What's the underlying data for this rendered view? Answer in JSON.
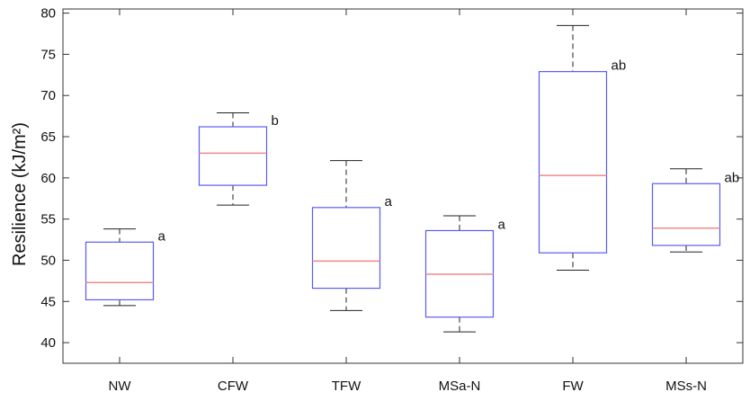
{
  "chart_data": {
    "type": "boxplot",
    "title": "",
    "xlabel": "",
    "ylabel": "Resilience (kJ/m²)",
    "ylim": [
      37.5,
      80.5
    ],
    "yticks": [
      40,
      45,
      50,
      55,
      60,
      65,
      70,
      75,
      80
    ],
    "categories": [
      "NW",
      "CFW",
      "TFW",
      "MSa-N",
      "FW",
      "MSs-N"
    ],
    "boxes": [
      {
        "category": "NW",
        "min": 44.5,
        "q1": 45.2,
        "median": 47.3,
        "q3": 52.2,
        "max": 53.8,
        "group": "a"
      },
      {
        "category": "CFW",
        "min": 56.7,
        "q1": 59.1,
        "median": 63.0,
        "q3": 66.2,
        "max": 67.9,
        "group": "b"
      },
      {
        "category": "TFW",
        "min": 43.9,
        "q1": 46.6,
        "median": 49.9,
        "q3": 56.4,
        "max": 62.1,
        "group": "a"
      },
      {
        "category": "MSa-N",
        "min": 41.3,
        "q1": 43.1,
        "median": 48.3,
        "q3": 53.6,
        "max": 55.4,
        "group": "a"
      },
      {
        "category": "FW",
        "min": 48.8,
        "q1": 50.9,
        "median": 60.3,
        "q3": 72.9,
        "max": 78.5,
        "group": "ab"
      },
      {
        "category": "MSs-N",
        "min": 51.0,
        "q1": 51.8,
        "median": 53.9,
        "q3": 59.3,
        "max": 61.1,
        "group": "ab"
      }
    ],
    "colors": {
      "box": "#5b5bf2",
      "median": "#ef8a8a",
      "whisker": "#222222",
      "axis": "#333333"
    },
    "grid": false,
    "legend": "none"
  }
}
